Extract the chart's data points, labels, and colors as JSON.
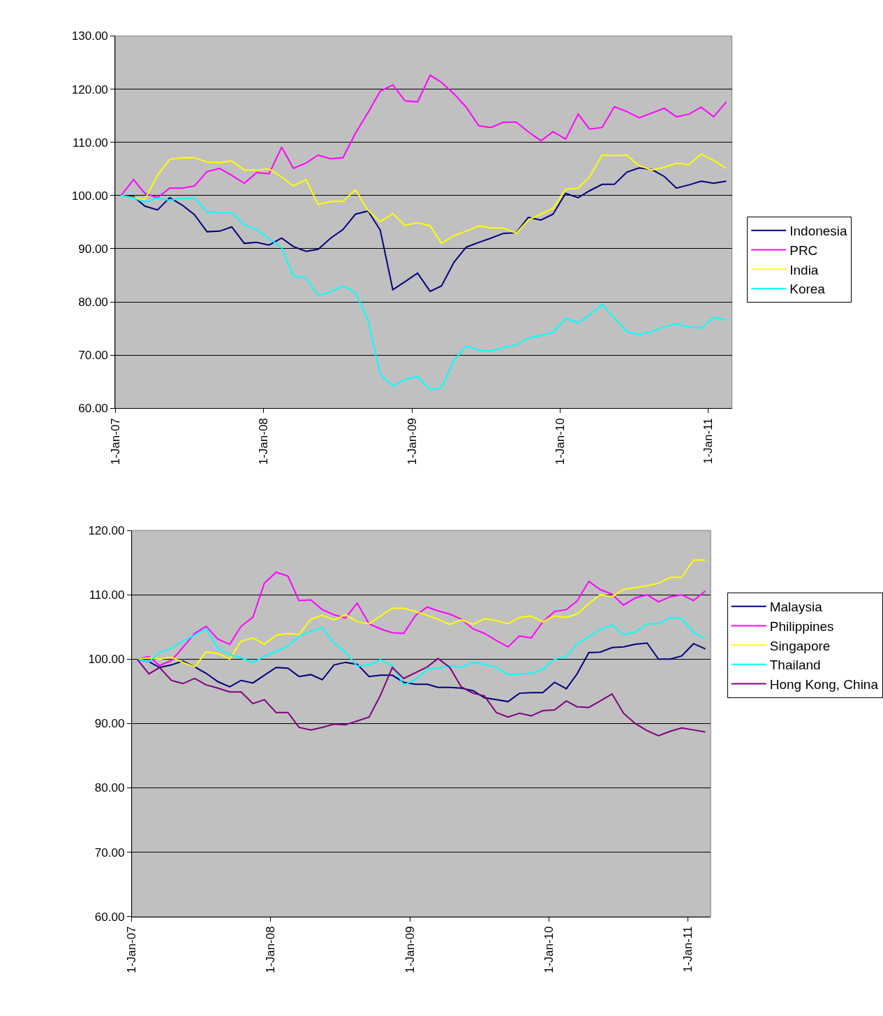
{
  "chart_data": [
    {
      "type": "line",
      "legend": "right",
      "grid": "y",
      "marker": "none",
      "line_style": "solid",
      "x": [
        "2007-01-15",
        "2007-02-15",
        "2007-03-15",
        "2007-04-15",
        "2007-05-15",
        "2007-06-15",
        "2007-07-15",
        "2007-08-15",
        "2007-09-15",
        "2007-10-15",
        "2007-11-15",
        "2007-12-15",
        "2008-01-15",
        "2008-02-15",
        "2008-03-15",
        "2008-04-15",
        "2008-05-15",
        "2008-06-15",
        "2008-07-15",
        "2008-08-15",
        "2008-09-15",
        "2008-10-15",
        "2008-11-15",
        "2008-12-15",
        "2009-01-15",
        "2009-02-15",
        "2009-03-15",
        "2009-04-15",
        "2009-05-15",
        "2009-06-15",
        "2009-07-15",
        "2009-08-15",
        "2009-09-15",
        "2009-10-15",
        "2009-11-15",
        "2009-12-15",
        "2010-01-15",
        "2010-02-15",
        "2010-03-15",
        "2010-04-15",
        "2010-05-15",
        "2010-06-15",
        "2010-07-15",
        "2010-08-15",
        "2010-09-15",
        "2010-10-15",
        "2010-11-15",
        "2010-12-15",
        "2011-01-15",
        "2011-02-15"
      ],
      "xlim": [
        "2007-01-01",
        "2011-03-01"
      ],
      "xticks": [
        {
          "value": "2007-01-01",
          "label": "1-Jan-07"
        },
        {
          "value": "2008-01-01",
          "label": "1-Jan-08"
        },
        {
          "value": "2009-01-01",
          "label": "1-Jan-09"
        },
        {
          "value": "2010-01-01",
          "label": "1-Jan-10"
        },
        {
          "value": "2011-01-01",
          "label": "1-Jan-11"
        }
      ],
      "ylim": [
        60,
        130
      ],
      "yticks": [
        {
          "value": 60,
          "label": "60.00"
        },
        {
          "value": 70,
          "label": "70.00"
        },
        {
          "value": 80,
          "label": "80.00"
        },
        {
          "value": 90,
          "label": "90.00"
        },
        {
          "value": 100,
          "label": "100.00"
        },
        {
          "value": 110,
          "label": "110.00"
        },
        {
          "value": 120,
          "label": "120.00"
        },
        {
          "value": 130,
          "label": "130.00"
        }
      ],
      "series": [
        {
          "name": "Indonesia",
          "color": "#000080",
          "values": [
            100,
            99.8,
            98.0,
            97.3,
            99.6,
            98.2,
            96.4,
            93.2,
            93.3,
            94.1,
            91.0,
            91.2,
            90.7,
            92.0,
            90.4,
            89.5,
            89.9,
            92.0,
            93.6,
            96.5,
            97.1,
            93.5,
            82.3,
            83.8,
            85.4,
            82.0,
            83.0,
            87.5,
            90.3,
            91.2,
            92.0,
            92.9,
            93.0,
            95.9,
            95.4,
            96.5,
            100.4,
            99.6,
            100.9,
            102.1,
            102.1,
            104.4,
            105.2,
            104.9,
            103.6,
            101.4,
            102.0,
            102.7,
            102.3,
            102.7
          ]
        },
        {
          "name": "PRC",
          "color": "#ff00ff",
          "values": [
            100,
            103.0,
            100.4,
            99.6,
            101.4,
            101.4,
            101.8,
            104.5,
            105.1,
            103.8,
            102.3,
            104.3,
            104.1,
            109.1,
            105.1,
            106.1,
            107.6,
            106.9,
            107.1,
            111.7,
            115.6,
            119.6,
            120.8,
            117.8,
            117.6,
            122.6,
            121.3,
            119.1,
            116.6,
            113.1,
            112.8,
            113.8,
            113.8,
            112.0,
            110.3,
            112.0,
            110.6,
            115.3,
            112.5,
            112.8,
            116.7,
            115.8,
            114.6,
            115.5,
            116.4,
            114.8,
            115.3,
            116.6,
            114.8,
            117.6
          ]
        },
        {
          "name": "India",
          "color": "#ffff00",
          "values": [
            100,
            99.6,
            99.3,
            103.8,
            106.8,
            107.1,
            107.1,
            106.3,
            106.2,
            106.5,
            104.8,
            104.8,
            105.0,
            103.5,
            101.8,
            103.0,
            98.3,
            98.9,
            98.9,
            101.1,
            97.2,
            95.1,
            96.6,
            94.4,
            94.9,
            94.3,
            91.0,
            92.5,
            93.3,
            94.3,
            93.9,
            93.9,
            92.9,
            95.4,
            96.5,
            97.6,
            101.2,
            101.4,
            103.5,
            107.6,
            107.5,
            107.6,
            105.6,
            104.8,
            105.3,
            106.1,
            105.8,
            107.8,
            106.6,
            105.1
          ]
        },
        {
          "name": "Korea",
          "color": "#00ffff",
          "values": [
            100,
            99.5,
            98.8,
            99.5,
            99.1,
            99.5,
            99.5,
            97.0,
            96.7,
            96.8,
            94.5,
            93.6,
            91.9,
            90.2,
            85.0,
            84.5,
            81.2,
            81.9,
            83.0,
            81.8,
            76.5,
            66.4,
            64.2,
            65.4,
            66.0,
            63.5,
            63.9,
            69.0,
            71.7,
            70.9,
            70.8,
            71.4,
            71.9,
            73.2,
            73.7,
            74.3,
            76.9,
            76.1,
            77.6,
            79.5,
            77.0,
            74.4,
            73.9,
            74.4,
            75.3,
            75.9,
            75.3,
            75.1,
            77.1,
            76.6
          ]
        }
      ]
    },
    {
      "type": "line",
      "legend": "right",
      "grid": "y",
      "marker": "none",
      "line_style": "solid",
      "x": [
        "2007-01-15",
        "2007-02-15",
        "2007-03-15",
        "2007-04-15",
        "2007-05-15",
        "2007-06-15",
        "2007-07-15",
        "2007-08-15",
        "2007-09-15",
        "2007-10-15",
        "2007-11-15",
        "2007-12-15",
        "2008-01-15",
        "2008-02-15",
        "2008-03-15",
        "2008-04-15",
        "2008-05-15",
        "2008-06-15",
        "2008-07-15",
        "2008-08-15",
        "2008-09-15",
        "2008-10-15",
        "2008-11-15",
        "2008-12-15",
        "2009-01-15",
        "2009-02-15",
        "2009-03-15",
        "2009-04-15",
        "2009-05-15",
        "2009-06-15",
        "2009-07-15",
        "2009-08-15",
        "2009-09-15",
        "2009-10-15",
        "2009-11-15",
        "2009-12-15",
        "2010-01-15",
        "2010-02-15",
        "2010-03-15",
        "2010-04-15",
        "2010-05-15",
        "2010-06-15",
        "2010-07-15",
        "2010-08-15",
        "2010-09-15",
        "2010-10-15",
        "2010-11-15",
        "2010-12-15",
        "2011-01-15",
        "2011-02-15"
      ],
      "xlim": [
        "2007-01-01",
        "2011-03-01"
      ],
      "xticks": [
        {
          "value": "2007-01-01",
          "label": "1-Jan-07"
        },
        {
          "value": "2008-01-01",
          "label": "1-Jan-08"
        },
        {
          "value": "2009-01-01",
          "label": "1-Jan-09"
        },
        {
          "value": "2010-01-01",
          "label": "1-Jan-10"
        },
        {
          "value": "2011-01-01",
          "label": "1-Jan-11"
        }
      ],
      "ylim": [
        60,
        120
      ],
      "yticks": [
        {
          "value": 60,
          "label": "60.00"
        },
        {
          "value": 70,
          "label": "70.00"
        },
        {
          "value": 80,
          "label": "80.00"
        },
        {
          "value": 90,
          "label": "90.00"
        },
        {
          "value": 100,
          "label": "100.00"
        },
        {
          "value": 110,
          "label": "110.00"
        },
        {
          "value": 120,
          "label": "120.00"
        }
      ],
      "series": [
        {
          "name": "Malaysia",
          "color": "#000080",
          "values": [
            100,
            99.6,
            98.7,
            99.1,
            99.7,
            98.8,
            97.8,
            96.5,
            95.7,
            96.7,
            96.3,
            97.5,
            98.7,
            98.6,
            97.3,
            97.6,
            96.8,
            99.1,
            99.5,
            99.2,
            97.3,
            97.5,
            97.5,
            96.4,
            96.1,
            96.1,
            95.6,
            95.6,
            95.5,
            95.1,
            94.0,
            93.7,
            93.4,
            94.7,
            94.8,
            94.8,
            96.4,
            95.4,
            97.7,
            101.0,
            101.1,
            101.8,
            101.9,
            102.3,
            102.5,
            100.0,
            100.0,
            100.5,
            102.4,
            101.6
          ]
        },
        {
          "name": "Philippines",
          "color": "#ff00ff",
          "values": [
            100,
            100.4,
            99.0,
            99.8,
            101.8,
            104.0,
            105.1,
            103.1,
            102.3,
            105.1,
            106.5,
            111.8,
            113.5,
            112.9,
            109.1,
            109.2,
            107.7,
            106.9,
            106.4,
            108.7,
            105.5,
            104.7,
            104.1,
            104.0,
            106.8,
            108.1,
            107.5,
            107.0,
            106.2,
            104.7,
            104.0,
            102.9,
            101.9,
            103.6,
            103.3,
            105.8,
            107.4,
            107.7,
            109.0,
            112.1,
            110.8,
            110.1,
            108.4,
            109.5,
            110.0,
            108.9,
            109.7,
            110.0,
            109.1,
            110.6
          ]
        },
        {
          "name": "Singapore",
          "color": "#ffff00",
          "values": [
            100,
            100.2,
            100.0,
            100.3,
            99.5,
            98.8,
            101.1,
            100.9,
            100.0,
            102.8,
            103.3,
            102.3,
            103.7,
            104.0,
            103.8,
            106.2,
            106.8,
            106.1,
            106.9,
            105.8,
            105.5,
            106.7,
            107.9,
            107.9,
            107.4,
            106.8,
            106.2,
            105.4,
            106.1,
            105.4,
            106.3,
            106.0,
            105.5,
            106.5,
            106.7,
            105.8,
            106.7,
            106.5,
            107.0,
            108.6,
            110.0,
            109.7,
            110.8,
            111.1,
            111.4,
            111.8,
            112.7,
            112.7,
            115.4,
            115.4
          ]
        },
        {
          "name": "Thailand",
          "color": "#00ffff",
          "values": [
            100,
            99.6,
            101.0,
            101.7,
            102.8,
            103.7,
            104.7,
            101.7,
            100.7,
            100.2,
            99.5,
            100.4,
            101.2,
            102.1,
            103.5,
            104.3,
            104.9,
            102.5,
            101.1,
            98.9,
            99.1,
            99.9,
            99.0,
            96.0,
            96.8,
            98.4,
            98.6,
            99.0,
            98.7,
            99.5,
            99.2,
            98.7,
            97.6,
            97.7,
            97.8,
            98.4,
            100.0,
            100.4,
            102.4,
            103.5,
            104.6,
            105.3,
            103.8,
            104.2,
            105.5,
            105.5,
            106.5,
            106.3,
            104.2,
            103.1
          ]
        },
        {
          "name": "Hong Kong, China",
          "color": "#800080",
          "values": [
            100,
            97.7,
            98.7,
            96.7,
            96.2,
            97.0,
            96.0,
            95.5,
            94.9,
            94.9,
            93.1,
            93.7,
            91.7,
            91.7,
            89.4,
            89.0,
            89.4,
            89.9,
            89.8,
            90.4,
            91.0,
            94.4,
            98.7,
            97.0,
            97.9,
            98.8,
            100.1,
            98.7,
            95.7,
            94.7,
            94.3,
            91.7,
            91.0,
            91.6,
            91.2,
            92.0,
            92.1,
            93.5,
            92.6,
            92.5,
            93.5,
            94.6,
            91.6,
            90.0,
            88.9,
            88.1,
            88.8,
            89.3,
            89.0,
            88.7
          ]
        }
      ]
    }
  ]
}
